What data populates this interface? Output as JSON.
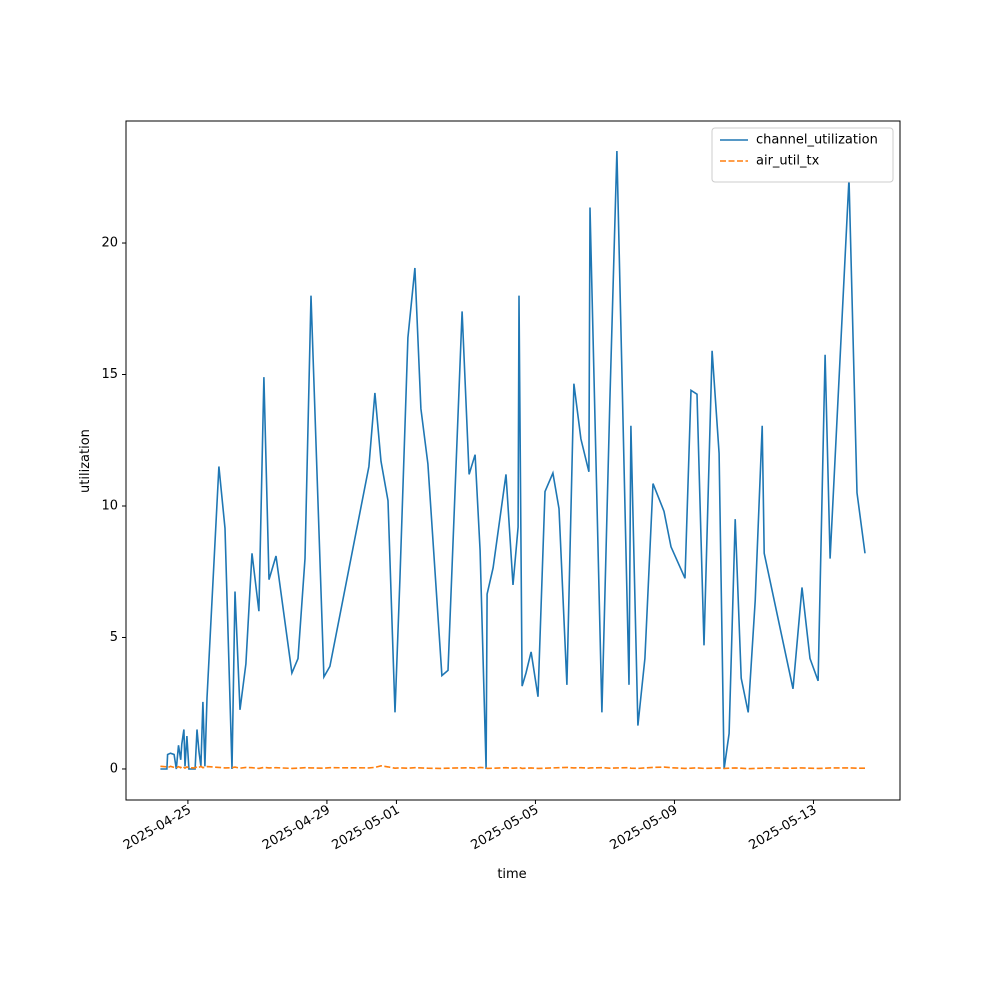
{
  "chart_data": {
    "type": "line",
    "xlabel": "time",
    "ylabel": "utilization",
    "x": [
      "2025-04-24T05:00",
      "2025-04-24T09:30",
      "2025-04-24T10:00",
      "2025-04-24T12:00",
      "2025-04-24T14:30",
      "2025-04-24T16:00",
      "2025-04-24T17:30",
      "2025-04-24T19:00",
      "2025-04-24T19:45",
      "2025-04-24T21:15",
      "2025-04-24T22:00",
      "2025-04-24T23:20",
      "2025-04-25T00:40",
      "2025-04-25T05:00",
      "2025-04-25T06:15",
      "2025-04-25T07:40",
      "2025-04-25T09:00",
      "2025-04-25T10:20",
      "2025-04-25T11:45",
      "2025-04-25T13:10",
      "2025-04-25T21:25",
      "2025-04-26T01:35",
      "2025-04-26T06:25",
      "2025-04-26T08:30",
      "2025-04-26T12:00",
      "2025-04-26T16:05",
      "2025-04-26T20:15",
      "2025-04-27T01:00",
      "2025-04-27T04:30",
      "2025-04-27T08:00",
      "2025-04-27T12:50",
      "2025-04-27T23:50",
      "2025-04-28T04:00",
      "2025-04-28T08:50",
      "2025-04-28T13:00",
      "2025-04-28T21:55",
      "2025-04-29T02:05",
      "2025-04-30T05:00",
      "2025-04-30T09:10",
      "2025-04-30T13:20",
      "2025-04-30T18:10",
      "2025-04-30T23:00",
      "2025-05-01T02:25",
      "2025-05-01T07:55",
      "2025-05-01T12:45",
      "2025-05-01T16:55",
      "2025-05-01T21:45",
      "2025-05-02T07:25",
      "2025-05-02T11:35",
      "2025-05-02T21:20",
      "2025-05-03T02:10",
      "2025-05-03T06:20",
      "2025-05-03T09:45",
      "2025-05-03T13:55",
      "2025-05-03T14:35",
      "2025-05-03T18:45",
      "2025-05-04T03:40",
      "2025-05-04T08:30",
      "2025-05-04T12:00",
      "2025-05-04T12:40",
      "2025-05-04T14:45",
      "2025-05-04T17:30",
      "2025-05-04T21:00",
      "2025-05-05T01:45",
      "2025-05-05T06:35",
      "2025-05-05T12:05",
      "2025-05-05T16:15",
      "2025-05-05T21:45",
      "2025-05-06T02:35",
      "2025-05-06T07:25",
      "2025-05-06T12:55",
      "2025-05-06T13:40",
      "2025-05-06T21:55",
      "2025-05-07T03:25",
      "2025-05-07T08:15",
      "2025-05-07T16:35",
      "2025-05-07T17:55",
      "2025-05-07T22:45",
      "2025-05-08T03:35",
      "2025-05-08T09:10",
      "2025-05-08T16:45",
      "2025-05-08T21:35",
      "2025-05-09T07:15",
      "2025-05-09T11:25",
      "2025-05-09T15:35",
      "2025-05-09T20:25",
      "2025-05-10T02:00",
      "2025-05-10T06:50",
      "2025-05-10T10:15",
      "2025-05-10T13:45",
      "2025-05-10T17:55",
      "2025-05-10T22:05",
      "2025-05-11T02:55",
      "2025-05-11T07:45",
      "2025-05-11T12:35",
      "2025-05-11T14:00",
      "2025-05-12T09:50",
      "2025-05-12T16:05",
      "2025-05-12T21:35",
      "2025-05-13T03:10",
      "2025-05-13T08:00",
      "2025-05-13T11:30",
      "2025-05-14T00:30",
      "2025-05-14T06:05",
      "2025-05-14T11:35"
    ],
    "series": [
      {
        "name": "channel_utilization",
        "color": "#1f77b4",
        "dash": false,
        "values": [
          0,
          0,
          0.55,
          0.6,
          0.55,
          0,
          0.9,
          0.35,
          0.95,
          1.5,
          0.1,
          1.25,
          0,
          0,
          1.5,
          0.65,
          0.1,
          2.55,
          0.1,
          2.7,
          11.5,
          9.15,
          0,
          6.75,
          2.25,
          4.0,
          8.2,
          6.0,
          14.9,
          7.2,
          8.1,
          3.65,
          4.2,
          8.0,
          18.0,
          3.5,
          3.9,
          11.5,
          14.3,
          11.7,
          10.2,
          2.15,
          7.2,
          16.4,
          19.05,
          13.7,
          11.6,
          3.55,
          3.75,
          17.4,
          11.2,
          11.95,
          8.3,
          0,
          6.65,
          7.65,
          11.2,
          7.0,
          9.2,
          18.0,
          3.15,
          3.65,
          4.45,
          2.75,
          10.55,
          11.25,
          9.9,
          3.2,
          14.65,
          12.55,
          11.3,
          21.35,
          2.15,
          14.05,
          23.5,
          3.2,
          13.05,
          1.65,
          4.2,
          10.85,
          9.8,
          8.45,
          7.25,
          14.4,
          14.25,
          4.7,
          15.9,
          12.0,
          0,
          1.35,
          9.5,
          3.45,
          2.15,
          6.4,
          13.05,
          8.2,
          3.05,
          6.9,
          4.2,
          3.35,
          15.75,
          8.0,
          22.45,
          10.5,
          8.2
        ]
      },
      {
        "name": "air_util_tx",
        "color": "#ff7f0e",
        "dash": true,
        "values": [
          0.1,
          0.08,
          0.05,
          0.1,
          0.06,
          0.04,
          0.09,
          0.05,
          0.1,
          0.06,
          0.03,
          0.08,
          0.05,
          0.04,
          0.09,
          0.06,
          0.1,
          0.05,
          0.07,
          0.09,
          0.06,
          0.04,
          0.05,
          0.07,
          0.03,
          0.06,
          0.05,
          0.02,
          0.06,
          0.04,
          0.05,
          0.02,
          0.03,
          0.05,
          0.04,
          0.03,
          0.05,
          0.04,
          0.06,
          0.12,
          0.08,
          0.03,
          0.04,
          0.03,
          0.05,
          0.04,
          0.03,
          0.02,
          0.03,
          0.04,
          0.05,
          0.03,
          0.06,
          0.04,
          0.02,
          0.03,
          0.05,
          0.03,
          0.04,
          0.06,
          0.02,
          0.03,
          0.04,
          0.02,
          0.03,
          0.04,
          0.05,
          0.06,
          0.04,
          0.05,
          0.03,
          0.04,
          0.05,
          0.03,
          0.04,
          0.05,
          0.03,
          0.02,
          0.04,
          0.06,
          0.07,
          0.05,
          0.02,
          0.03,
          0.04,
          0.02,
          0.03,
          0.04,
          0.02,
          0.03,
          0.04,
          0.03,
          0.01,
          0.02,
          0.03,
          0.04,
          0.03,
          0.04,
          0.03,
          0.02,
          0.03,
          0.04,
          0.04,
          0.03,
          0.03
        ]
      }
    ],
    "xlim": [
      "2025-04-23T05:15",
      "2025-05-15T11:45"
    ],
    "xticks": [
      "2025-04-25",
      "2025-04-29",
      "2025-05-01",
      "2025-05-05",
      "2025-05-09",
      "2025-05-13"
    ],
    "ylim": [
      -1.18,
      24.64
    ],
    "yticks": [
      0,
      5,
      10,
      15,
      20
    ],
    "legend": "upper right"
  }
}
